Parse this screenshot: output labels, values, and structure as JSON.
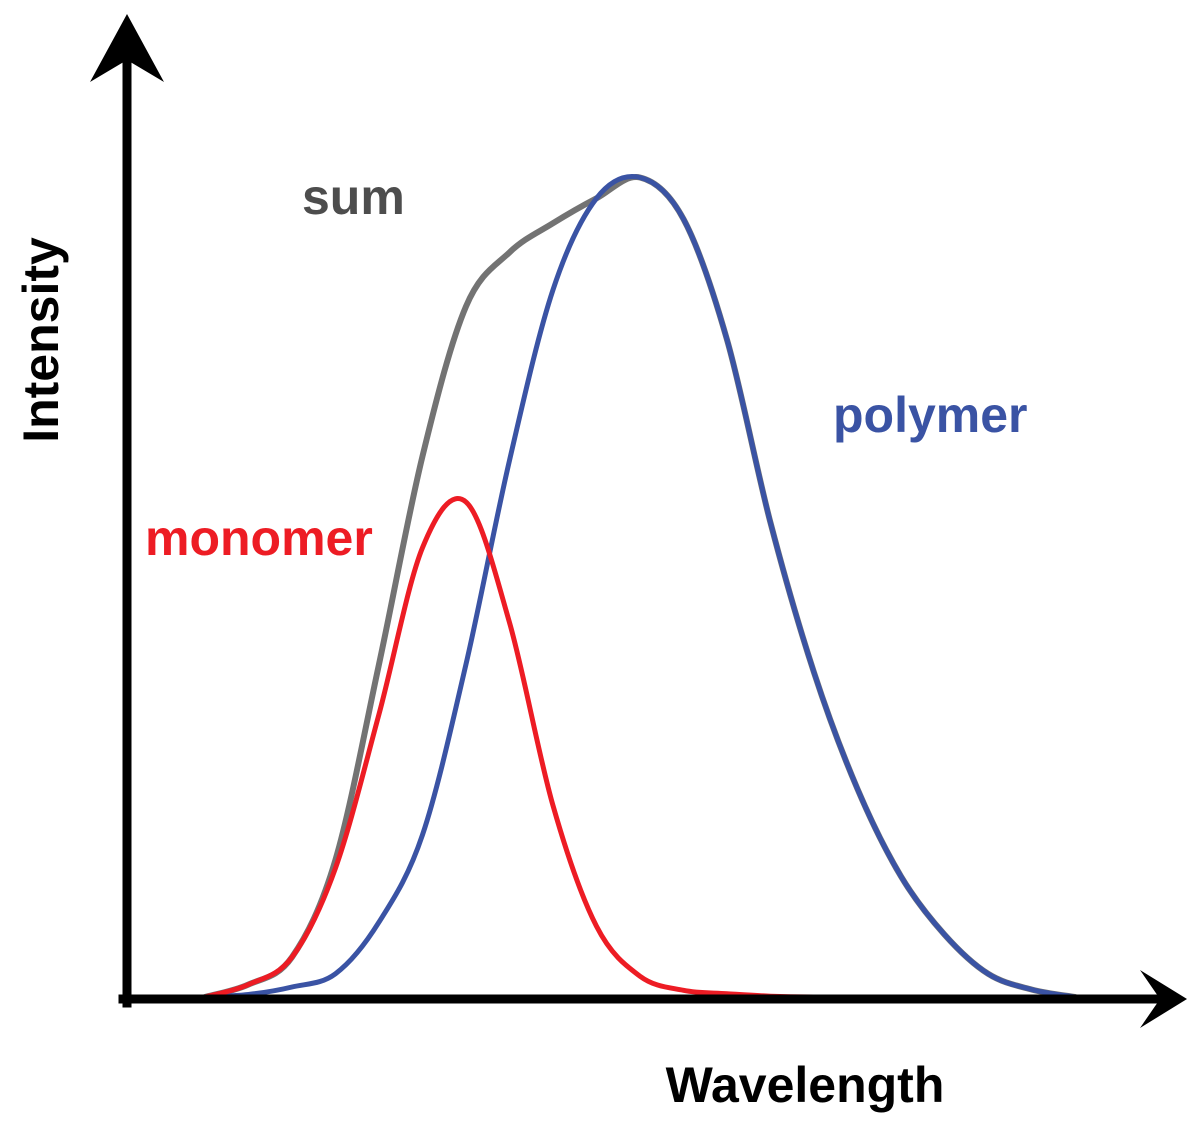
{
  "chart_data": {
    "type": "line",
    "title": "",
    "xlabel": "Wavelength",
    "ylabel": "Intensity",
    "xlim": [
      0,
      1
    ],
    "ylim": [
      0,
      1
    ],
    "grid": false,
    "legend": "labels placed next to each curve",
    "x": [
      0.0,
      0.05,
      0.1,
      0.15,
      0.2,
      0.25,
      0.3,
      0.35,
      0.4,
      0.45,
      0.5,
      0.55,
      0.6,
      0.65,
      0.7,
      0.75,
      0.8,
      0.85,
      0.9,
      0.95,
      1.0
    ],
    "series": [
      {
        "name": "sum",
        "color": "#5b5b5b",
        "values": [
          0.0,
          0.015,
          0.048,
          0.165,
          0.4,
          0.65,
          0.83,
          0.895,
          0.93,
          0.96,
          0.985,
          0.935,
          0.79,
          0.57,
          0.39,
          0.25,
          0.145,
          0.075,
          0.028,
          0.009,
          0.0
        ]
      },
      {
        "name": "monomer",
        "color": "#ed1c24",
        "values": [
          0.0,
          0.015,
          0.048,
          0.155,
          0.34,
          0.54,
          0.595,
          0.45,
          0.23,
          0.085,
          0.025,
          0.008,
          0.004,
          0.001,
          0.0,
          0.0,
          0.0,
          0.0,
          0.0,
          0.0,
          0.0
        ]
      },
      {
        "name": "polymer",
        "color": "#3a53a4",
        "values": [
          0.0,
          0.003,
          0.012,
          0.028,
          0.09,
          0.195,
          0.4,
          0.645,
          0.85,
          0.96,
          0.985,
          0.935,
          0.79,
          0.57,
          0.39,
          0.25,
          0.145,
          0.075,
          0.028,
          0.009,
          0.0
        ]
      }
    ]
  }
}
